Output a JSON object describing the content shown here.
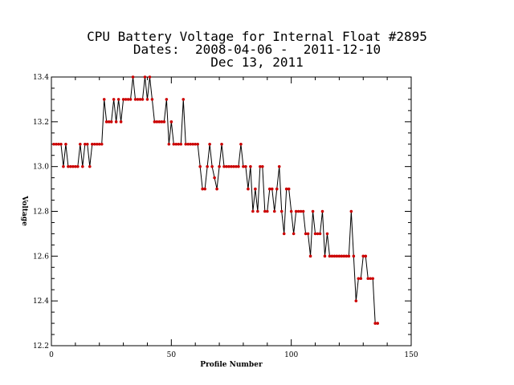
{
  "chart_data": {
    "type": "line",
    "title": "CPU Battery Voltage for Internal Float #2895",
    "subtitle": "Dates:  2008-04-06 -  2011-12-10",
    "date_line": "Dec 13, 2011",
    "xlabel": "Profile Number",
    "ylabel": "Voltage",
    "xlim": [
      0,
      150
    ],
    "ylim": [
      12.2,
      13.4
    ],
    "xticks": [
      "0",
      "50",
      "100",
      "150"
    ],
    "yticks": [
      "12.2",
      "12.4",
      "12.6",
      "12.8",
      "13.0",
      "13.2",
      "13.4"
    ],
    "line_color": "#000000",
    "marker_color": "#cc0000",
    "series": [
      {
        "x": [
          1,
          2,
          3,
          4,
          5,
          6,
          7,
          8,
          9,
          10,
          11,
          12,
          13,
          14,
          15,
          16,
          17,
          18,
          19,
          20,
          21,
          22,
          23,
          24,
          25,
          26,
          27,
          28,
          29,
          30,
          31,
          32,
          33,
          34,
          35,
          36,
          37,
          38,
          39,
          40,
          41,
          42,
          43,
          44,
          45,
          46,
          47,
          48,
          49,
          50,
          51,
          52,
          53,
          54,
          55,
          56,
          57,
          58,
          59,
          60,
          61,
          62,
          63,
          64,
          65,
          66,
          67,
          68,
          69,
          70,
          71,
          72,
          73,
          74,
          75,
          76,
          77,
          78,
          79,
          80,
          81,
          82,
          83,
          84,
          85,
          86,
          87,
          88,
          89,
          90,
          91,
          92,
          93,
          94,
          95,
          96,
          97,
          98,
          99,
          100,
          101,
          102,
          103,
          104,
          105,
          106,
          107,
          108,
          109,
          110,
          111,
          112,
          113,
          114,
          115,
          116,
          117,
          118,
          119,
          120,
          121,
          122,
          123,
          124,
          125,
          126,
          127,
          128,
          129,
          130,
          131,
          132,
          133,
          134,
          135,
          136
        ],
        "values": [
          13.1,
          13.1,
          13.1,
          13.1,
          13.0,
          13.1,
          13.0,
          13.0,
          13.0,
          13.0,
          13.0,
          13.1,
          13.0,
          13.1,
          13.1,
          13.0,
          13.1,
          13.1,
          13.1,
          13.1,
          13.1,
          13.3,
          13.2,
          13.2,
          13.2,
          13.3,
          13.2,
          13.3,
          13.2,
          13.3,
          13.3,
          13.3,
          13.3,
          13.4,
          13.3,
          13.3,
          13.3,
          13.3,
          13.4,
          13.3,
          13.4,
          13.3,
          13.2,
          13.2,
          13.2,
          13.2,
          13.2,
          13.3,
          13.1,
          13.2,
          13.1,
          13.1,
          13.1,
          13.1,
          13.3,
          13.1,
          13.1,
          13.1,
          13.1,
          13.1,
          13.1,
          13.0,
          12.9,
          12.9,
          13.0,
          13.1,
          13.0,
          12.95,
          12.9,
          13.0,
          13.1,
          13.0,
          13.0,
          13.0,
          13.0,
          13.0,
          13.0,
          13.0,
          13.1,
          13.0,
          13.0,
          12.9,
          13.0,
          12.8,
          12.9,
          12.8,
          13.0,
          13.0,
          12.8,
          12.8,
          12.9,
          12.9,
          12.8,
          12.9,
          13.0,
          12.8,
          12.7,
          12.9,
          12.9,
          12.8,
          12.7,
          12.8,
          12.8,
          12.8,
          12.8,
          12.7,
          12.7,
          12.6,
          12.8,
          12.7,
          12.7,
          12.7,
          12.8,
          12.6,
          12.7,
          12.6,
          12.6,
          12.6,
          12.6,
          12.6,
          12.6,
          12.6,
          12.6,
          12.6,
          12.8,
          12.6,
          12.4,
          12.5,
          12.5,
          12.6,
          12.6,
          12.5,
          12.5,
          12.5,
          12.3,
          12.3
        ]
      }
    ]
  }
}
